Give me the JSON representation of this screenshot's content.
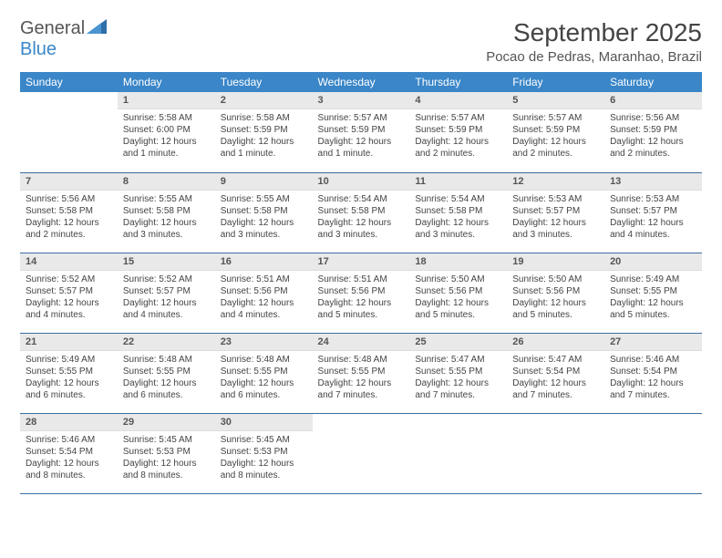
{
  "logo": {
    "text1": "General",
    "text2": "Blue"
  },
  "title": "September 2025",
  "location": "Pocao de Pedras, Maranhao, Brazil",
  "weekdays": [
    "Sunday",
    "Monday",
    "Tuesday",
    "Wednesday",
    "Thursday",
    "Friday",
    "Saturday"
  ],
  "colors": {
    "header_bg": "#3a86c8",
    "header_fg": "#ffffff",
    "daynum_bg": "#e9e9e9",
    "row_border": "#3a6fa0",
    "text": "#444444"
  },
  "fonts": {
    "title_pt": 28,
    "location_pt": 15,
    "weekday_pt": 12,
    "cell_pt": 10
  },
  "weeks": [
    [
      {
        "day": "",
        "sunrise": "",
        "sunset": "",
        "daylight": "",
        "empty": true
      },
      {
        "day": "1",
        "sunrise": "Sunrise: 5:58 AM",
        "sunset": "Sunset: 6:00 PM",
        "daylight": "Daylight: 12 hours and 1 minute."
      },
      {
        "day": "2",
        "sunrise": "Sunrise: 5:58 AM",
        "sunset": "Sunset: 5:59 PM",
        "daylight": "Daylight: 12 hours and 1 minute."
      },
      {
        "day": "3",
        "sunrise": "Sunrise: 5:57 AM",
        "sunset": "Sunset: 5:59 PM",
        "daylight": "Daylight: 12 hours and 1 minute."
      },
      {
        "day": "4",
        "sunrise": "Sunrise: 5:57 AM",
        "sunset": "Sunset: 5:59 PM",
        "daylight": "Daylight: 12 hours and 2 minutes."
      },
      {
        "day": "5",
        "sunrise": "Sunrise: 5:57 AM",
        "sunset": "Sunset: 5:59 PM",
        "daylight": "Daylight: 12 hours and 2 minutes."
      },
      {
        "day": "6",
        "sunrise": "Sunrise: 5:56 AM",
        "sunset": "Sunset: 5:59 PM",
        "daylight": "Daylight: 12 hours and 2 minutes."
      }
    ],
    [
      {
        "day": "7",
        "sunrise": "Sunrise: 5:56 AM",
        "sunset": "Sunset: 5:58 PM",
        "daylight": "Daylight: 12 hours and 2 minutes."
      },
      {
        "day": "8",
        "sunrise": "Sunrise: 5:55 AM",
        "sunset": "Sunset: 5:58 PM",
        "daylight": "Daylight: 12 hours and 3 minutes."
      },
      {
        "day": "9",
        "sunrise": "Sunrise: 5:55 AM",
        "sunset": "Sunset: 5:58 PM",
        "daylight": "Daylight: 12 hours and 3 minutes."
      },
      {
        "day": "10",
        "sunrise": "Sunrise: 5:54 AM",
        "sunset": "Sunset: 5:58 PM",
        "daylight": "Daylight: 12 hours and 3 minutes."
      },
      {
        "day": "11",
        "sunrise": "Sunrise: 5:54 AM",
        "sunset": "Sunset: 5:58 PM",
        "daylight": "Daylight: 12 hours and 3 minutes."
      },
      {
        "day": "12",
        "sunrise": "Sunrise: 5:53 AM",
        "sunset": "Sunset: 5:57 PM",
        "daylight": "Daylight: 12 hours and 3 minutes."
      },
      {
        "day": "13",
        "sunrise": "Sunrise: 5:53 AM",
        "sunset": "Sunset: 5:57 PM",
        "daylight": "Daylight: 12 hours and 4 minutes."
      }
    ],
    [
      {
        "day": "14",
        "sunrise": "Sunrise: 5:52 AM",
        "sunset": "Sunset: 5:57 PM",
        "daylight": "Daylight: 12 hours and 4 minutes."
      },
      {
        "day": "15",
        "sunrise": "Sunrise: 5:52 AM",
        "sunset": "Sunset: 5:57 PM",
        "daylight": "Daylight: 12 hours and 4 minutes."
      },
      {
        "day": "16",
        "sunrise": "Sunrise: 5:51 AM",
        "sunset": "Sunset: 5:56 PM",
        "daylight": "Daylight: 12 hours and 4 minutes."
      },
      {
        "day": "17",
        "sunrise": "Sunrise: 5:51 AM",
        "sunset": "Sunset: 5:56 PM",
        "daylight": "Daylight: 12 hours and 5 minutes."
      },
      {
        "day": "18",
        "sunrise": "Sunrise: 5:50 AM",
        "sunset": "Sunset: 5:56 PM",
        "daylight": "Daylight: 12 hours and 5 minutes."
      },
      {
        "day": "19",
        "sunrise": "Sunrise: 5:50 AM",
        "sunset": "Sunset: 5:56 PM",
        "daylight": "Daylight: 12 hours and 5 minutes."
      },
      {
        "day": "20",
        "sunrise": "Sunrise: 5:49 AM",
        "sunset": "Sunset: 5:55 PM",
        "daylight": "Daylight: 12 hours and 5 minutes."
      }
    ],
    [
      {
        "day": "21",
        "sunrise": "Sunrise: 5:49 AM",
        "sunset": "Sunset: 5:55 PM",
        "daylight": "Daylight: 12 hours and 6 minutes."
      },
      {
        "day": "22",
        "sunrise": "Sunrise: 5:48 AM",
        "sunset": "Sunset: 5:55 PM",
        "daylight": "Daylight: 12 hours and 6 minutes."
      },
      {
        "day": "23",
        "sunrise": "Sunrise: 5:48 AM",
        "sunset": "Sunset: 5:55 PM",
        "daylight": "Daylight: 12 hours and 6 minutes."
      },
      {
        "day": "24",
        "sunrise": "Sunrise: 5:48 AM",
        "sunset": "Sunset: 5:55 PM",
        "daylight": "Daylight: 12 hours and 7 minutes."
      },
      {
        "day": "25",
        "sunrise": "Sunrise: 5:47 AM",
        "sunset": "Sunset: 5:55 PM",
        "daylight": "Daylight: 12 hours and 7 minutes."
      },
      {
        "day": "26",
        "sunrise": "Sunrise: 5:47 AM",
        "sunset": "Sunset: 5:54 PM",
        "daylight": "Daylight: 12 hours and 7 minutes."
      },
      {
        "day": "27",
        "sunrise": "Sunrise: 5:46 AM",
        "sunset": "Sunset: 5:54 PM",
        "daylight": "Daylight: 12 hours and 7 minutes."
      }
    ],
    [
      {
        "day": "28",
        "sunrise": "Sunrise: 5:46 AM",
        "sunset": "Sunset: 5:54 PM",
        "daylight": "Daylight: 12 hours and 8 minutes."
      },
      {
        "day": "29",
        "sunrise": "Sunrise: 5:45 AM",
        "sunset": "Sunset: 5:53 PM",
        "daylight": "Daylight: 12 hours and 8 minutes."
      },
      {
        "day": "30",
        "sunrise": "Sunrise: 5:45 AM",
        "sunset": "Sunset: 5:53 PM",
        "daylight": "Daylight: 12 hours and 8 minutes."
      },
      {
        "day": "",
        "sunrise": "",
        "sunset": "",
        "daylight": "",
        "empty": true
      },
      {
        "day": "",
        "sunrise": "",
        "sunset": "",
        "daylight": "",
        "empty": true
      },
      {
        "day": "",
        "sunrise": "",
        "sunset": "",
        "daylight": "",
        "empty": true
      },
      {
        "day": "",
        "sunrise": "",
        "sunset": "",
        "daylight": "",
        "empty": true
      }
    ]
  ]
}
